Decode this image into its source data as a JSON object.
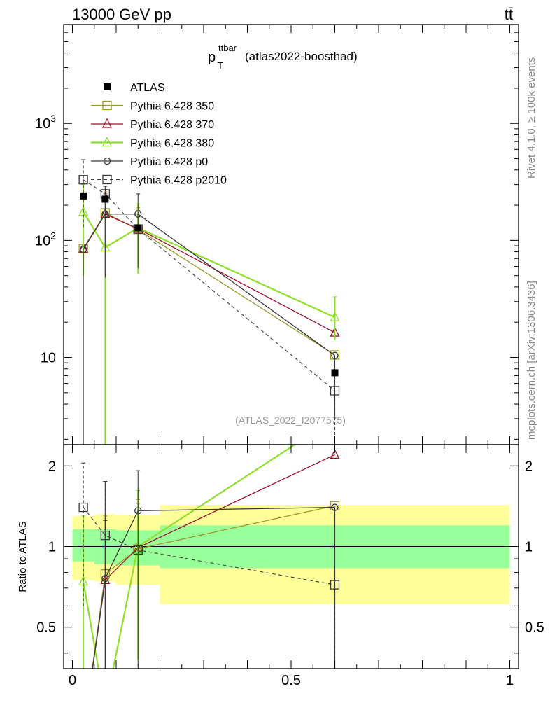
{
  "header": {
    "energy_label": "13000 GeV pp",
    "process_label": "tt̄"
  },
  "side_labels": {
    "rivet": "Rivet 4.1.0, ≥ 100k events",
    "source": "mcplots.cern.ch [arXiv:1306.3436]"
  },
  "chart_data": {
    "type": "line",
    "title": {
      "main": "p",
      "sub": "T",
      "sup": "ttbar",
      "suffix": "(atlas2022-boosthad)"
    },
    "analysis_id": "(ATLAS_2022_I2077575)",
    "xlabel": "",
    "ylabel_main": "",
    "ylabel_ratio": "Ratio to ATLAS",
    "xlim": [
      -0.02,
      1.02
    ],
    "ylim_main": [
      1.8,
      7000
    ],
    "ylim_ratio": [
      0.35,
      2.4
    ],
    "x_ticks": [
      "0",
      "0.5",
      "1"
    ],
    "y_ticks_main": [
      "10",
      "10^2",
      "10^3"
    ],
    "y_ticks_ratio": [
      "0.5",
      "1",
      "2"
    ],
    "legend": [
      "ATLAS",
      "Pythia 6.428 350",
      "Pythia 6.428 370",
      "Pythia 6.428 380",
      "Pythia 6.428 p0",
      "Pythia 6.428 p2010"
    ],
    "x": [
      0.025,
      0.075,
      0.15,
      0.6
    ],
    "bands": [
      {
        "x0": 0.0,
        "x1": 0.05,
        "g": [
          0.88,
          1.16
        ],
        "y": [
          0.75,
          1.3
        ]
      },
      {
        "x0": 0.05,
        "x1": 0.1,
        "g": [
          0.86,
          1.16
        ],
        "y": [
          0.74,
          1.32
        ]
      },
      {
        "x0": 0.1,
        "x1": 0.2,
        "g": [
          0.85,
          1.15
        ],
        "y": [
          0.72,
          1.31
        ]
      },
      {
        "x0": 0.2,
        "x1": 1.0,
        "g": [
          0.83,
          1.2
        ],
        "y": [
          0.61,
          1.43
        ]
      }
    ],
    "data": {
      "name": "ATLAS",
      "values": [
        240,
        225,
        128,
        7.4
      ],
      "color": "#000000"
    },
    "series": [
      {
        "name": "Pythia 6.428 350",
        "marker": "square",
        "color": "#9a9a2e",
        "dash": false,
        "width": 1.3,
        "values": [
          85,
          172,
          124,
          10.5
        ],
        "err_lo": [
          null,
          60,
          75,
          null
        ],
        "err_hi": [
          null,
          260,
          190,
          null
        ]
      },
      {
        "name": "Pythia 6.428 370",
        "marker": "triangle",
        "color": "#a0142c",
        "dash": false,
        "width": 1.3,
        "values": [
          85,
          168,
          126,
          16.3
        ],
        "err_lo": [
          null,
          55,
          70,
          null
        ],
        "err_hi": [
          null,
          250,
          180,
          null
        ]
      },
      {
        "name": "Pythia 6.428 380",
        "marker": "triangle",
        "color": "#8ee02a",
        "dash": false,
        "width": 2.2,
        "values": [
          175,
          87,
          128,
          22
        ],
        "err_lo": [
          50,
          0.001,
          52,
          14
        ],
        "err_hi": [
          300,
          180,
          205,
          33
        ]
      },
      {
        "name": "Pythia 6.428 p0",
        "marker": "circle",
        "color": "#3a3a3a",
        "dash": false,
        "width": 1.3,
        "values": [
          84,
          168,
          168,
          10.4
        ],
        "err_lo": [
          0.001,
          48,
          58,
          3.1
        ],
        "err_hi": [
          null,
          290,
          250,
          null
        ]
      },
      {
        "name": "Pythia 6.428 p2010",
        "marker": "square",
        "color": "#3a3a3a",
        "dash": true,
        "width": 1.1,
        "values": [
          330,
          250,
          125,
          5.2
        ],
        "err_lo": [
          130,
          null,
          null,
          0.001
        ],
        "err_hi": [
          490,
          null,
          null,
          null
        ]
      }
    ],
    "ratio_series": [
      {
        "name": "Pythia 6.428 350",
        "values": [
          0.2,
          0.79,
          0.98,
          1.42
        ],
        "err_lo": [
          null,
          0.27,
          0.52,
          0.3
        ],
        "err_hi": [
          null,
          1.3,
          1.5,
          null
        ]
      },
      {
        "name": "Pythia 6.428 370",
        "values": [
          0.2,
          0.75,
          0.99,
          2.2
        ],
        "err_lo": [
          null,
          0.27,
          0.52,
          null
        ],
        "err_hi": [
          null,
          1.25,
          1.45,
          null
        ]
      },
      {
        "name": "Pythia 6.428 380",
        "values": [
          0.74,
          0.25,
          1.0,
          3.0
        ],
        "err_lo": [
          0.2,
          null,
          0.38,
          null
        ],
        "err_hi": [
          1.3,
          null,
          1.62,
          null
        ]
      },
      {
        "name": "Pythia 6.428 p0",
        "values": [
          0.2,
          0.76,
          1.36,
          1.4
        ],
        "err_lo": [
          null,
          0.27,
          0.36,
          0.3
        ],
        "err_hi": [
          null,
          1.75,
          1.92,
          null
        ]
      },
      {
        "name": "Pythia 6.428 p2010",
        "values": [
          1.4,
          1.1,
          0.97,
          0.72
        ],
        "err_lo": [
          0.6,
          null,
          null,
          0.3
        ],
        "err_hi": [
          2.05,
          1.75,
          null,
          null
        ]
      }
    ]
  }
}
